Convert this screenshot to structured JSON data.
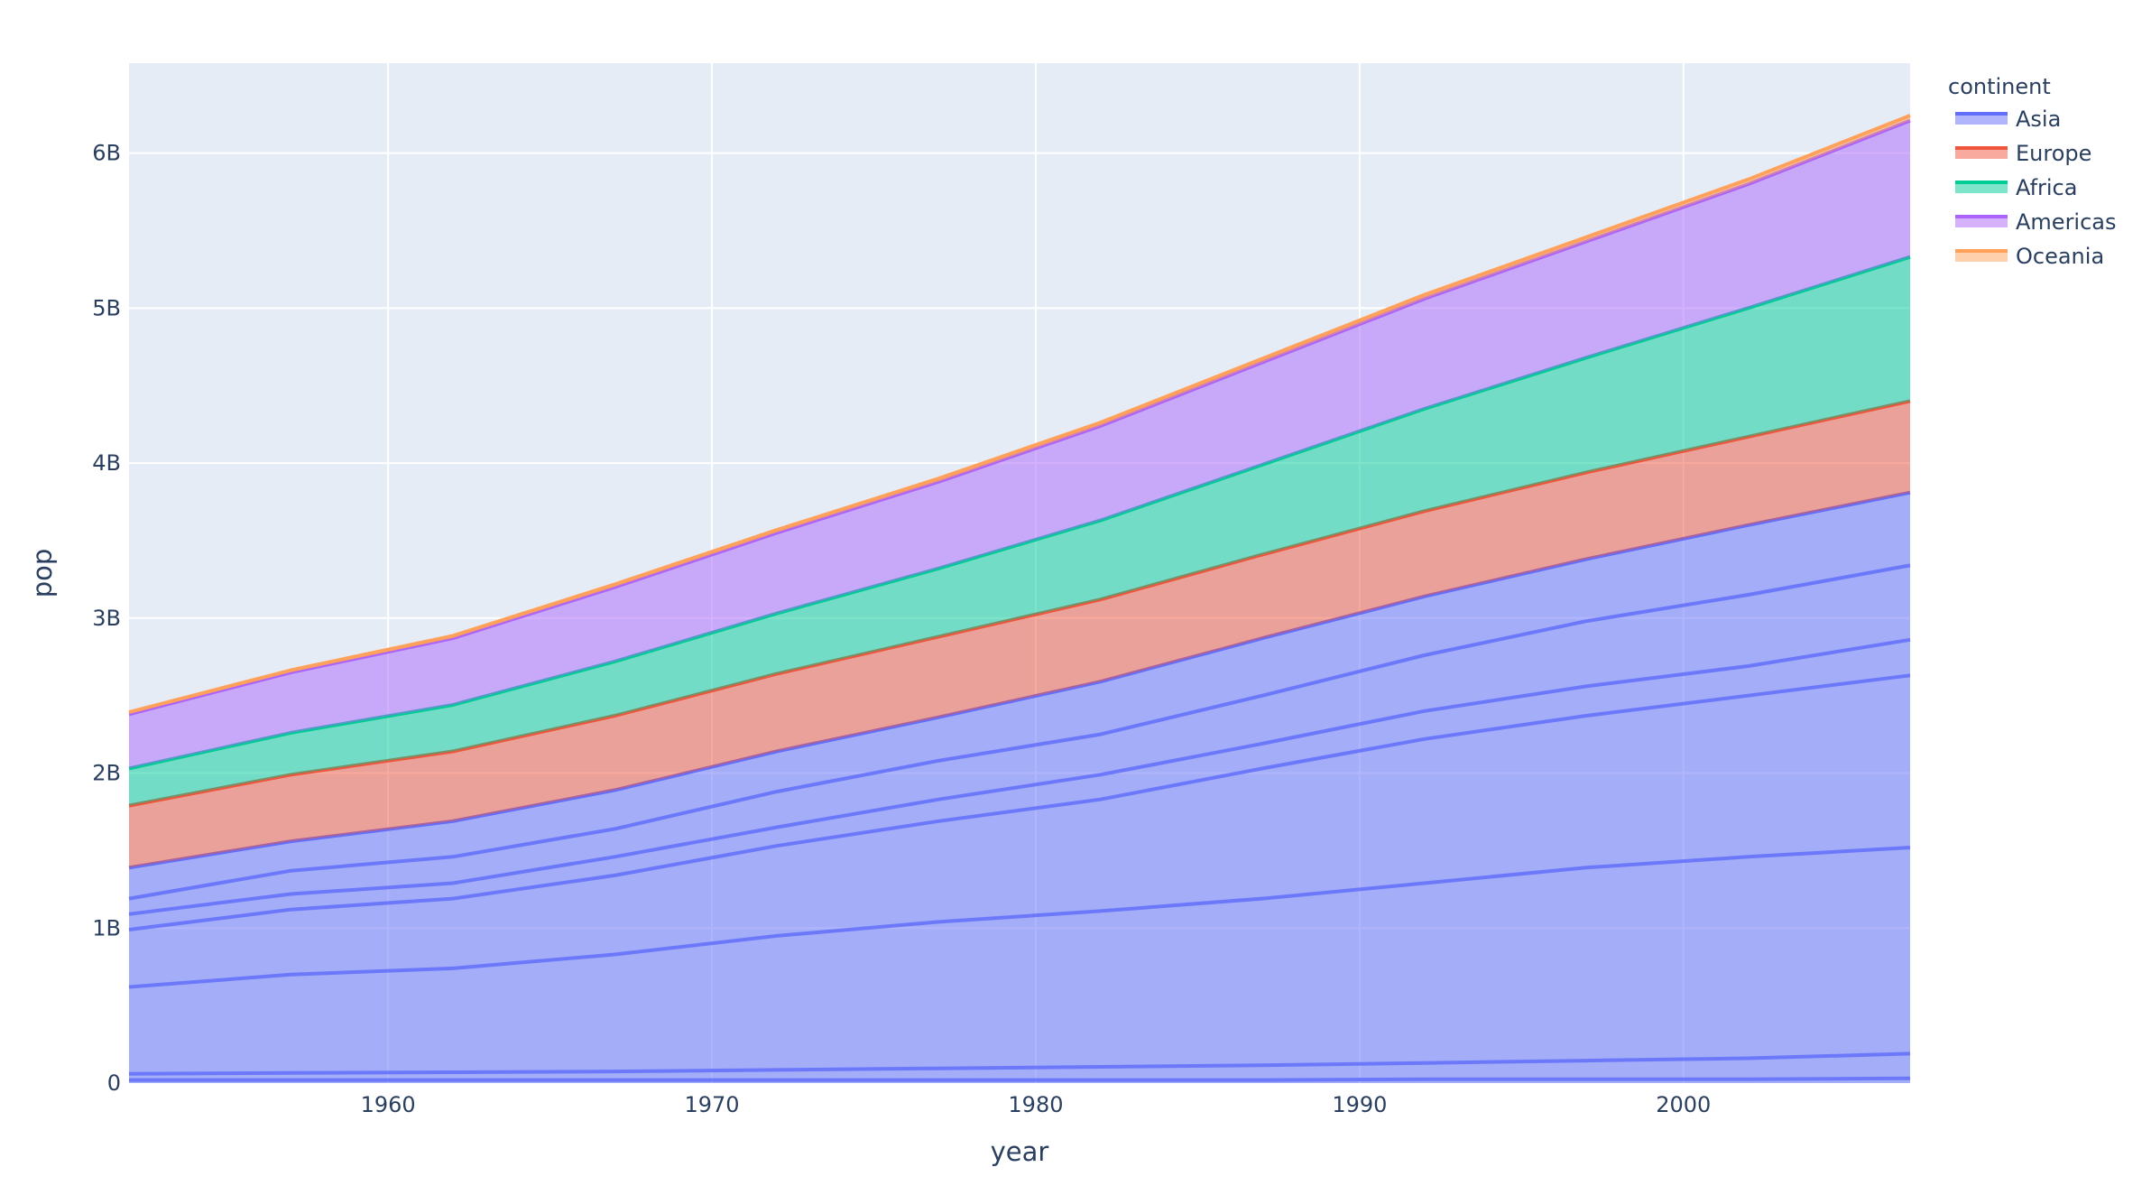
{
  "chart_data": {
    "type": "area",
    "stacked": true,
    "xlabel": "year",
    "ylabel": "pop",
    "xlim": [
      1952,
      2007
    ],
    "ylim": [
      0,
      6580000000
    ],
    "x_ticks": [
      1960,
      1970,
      1980,
      1990,
      2000
    ],
    "x_tick_labels": [
      "1960",
      "1970",
      "1980",
      "1990",
      "2000"
    ],
    "y_ticks": [
      0,
      1000000000,
      2000000000,
      3000000000,
      4000000000,
      5000000000,
      6000000000
    ],
    "y_tick_labels": [
      "0",
      "1B",
      "2B",
      "3B",
      "4B",
      "5B",
      "6B"
    ],
    "grid": true,
    "legend_title": "continent",
    "legend_position": "top-right",
    "x": [
      1952,
      1957,
      1962,
      1967,
      1972,
      1977,
      1982,
      1987,
      1992,
      1997,
      2002,
      2007
    ],
    "series": [
      {
        "name": "Asia",
        "color": "#636efa",
        "values": [
          1390000000,
          1560000000,
          1690000000,
          1890000000,
          2140000000,
          2360000000,
          2590000000,
          2870000000,
          3140000000,
          3380000000,
          3600000000,
          3810000000
        ],
        "inner_boundaries": [
          [
            20000000,
            20000000,
            20000000,
            20000000,
            20000000,
            20000000,
            20000000,
            20000000,
            25000000,
            25000000,
            25000000,
            30000000
          ],
          [
            60000000,
            65000000,
            70000000,
            75000000,
            85000000,
            95000000,
            105000000,
            115000000,
            130000000,
            145000000,
            160000000,
            190000000
          ],
          [
            620000000,
            700000000,
            740000000,
            830000000,
            950000000,
            1040000000,
            1110000000,
            1190000000,
            1290000000,
            1390000000,
            1460000000,
            1520000000
          ],
          [
            990000000,
            1120000000,
            1190000000,
            1340000000,
            1530000000,
            1690000000,
            1830000000,
            2030000000,
            2220000000,
            2370000000,
            2500000000,
            2630000000
          ],
          [
            1090000000,
            1220000000,
            1290000000,
            1460000000,
            1650000000,
            1830000000,
            1990000000,
            2190000000,
            2400000000,
            2560000000,
            2690000000,
            2860000000
          ],
          [
            1190000000,
            1370000000,
            1460000000,
            1640000000,
            1880000000,
            2080000000,
            2250000000,
            2500000000,
            2760000000,
            2980000000,
            3150000000,
            3340000000
          ]
        ]
      },
      {
        "name": "Europe",
        "color": "#ef553b",
        "values": [
          400000000,
          430000000,
          450000000,
          480000000,
          500000000,
          520000000,
          530000000,
          540000000,
          550000000,
          560000000,
          570000000,
          590000000
        ]
      },
      {
        "name": "Africa",
        "color": "#00cc96",
        "values": [
          240000000,
          270000000,
          300000000,
          350000000,
          390000000,
          440000000,
          510000000,
          580000000,
          660000000,
          740000000,
          830000000,
          930000000
        ]
      },
      {
        "name": "Americas",
        "color": "#ab63fa",
        "values": [
          350000000,
          390000000,
          430000000,
          480000000,
          520000000,
          560000000,
          610000000,
          660000000,
          710000000,
          750000000,
          800000000,
          880000000
        ]
      },
      {
        "name": "Oceania",
        "color": "#ffa15a",
        "values": [
          13000000,
          14000000,
          16000000,
          18000000,
          19000000,
          20000000,
          22000000,
          24000000,
          26000000,
          28000000,
          30000000,
          32000000
        ]
      }
    ]
  }
}
